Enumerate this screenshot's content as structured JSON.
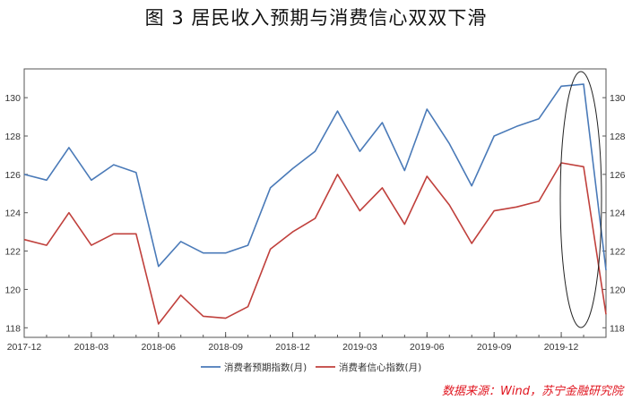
{
  "title": "图 3   居民收入预期与消费信心双双下滑",
  "source": "数据来源：Wind，苏宁金融研究院",
  "chart_data": {
    "type": "line",
    "x": [
      "2017-12",
      "2018-01",
      "2018-02",
      "2018-03",
      "2018-04",
      "2018-05",
      "2018-06",
      "2018-07",
      "2018-08",
      "2018-09",
      "2018-10",
      "2018-11",
      "2018-12",
      "2019-01",
      "2019-02",
      "2019-03",
      "2019-04",
      "2019-05",
      "2019-06",
      "2019-07",
      "2019-08",
      "2019-09",
      "2019-10",
      "2019-11",
      "2019-12",
      "2020-01",
      "2020-02"
    ],
    "x_tick_labels": [
      "2017-12",
      "2018-03",
      "2018-06",
      "2018-09",
      "2018-12",
      "2019-03",
      "2019-06",
      "2019-09",
      "2019-12"
    ],
    "y_ticks": [
      118,
      120,
      122,
      124,
      126,
      128,
      130
    ],
    "ylim": [
      117.5,
      131.5
    ],
    "grid": false,
    "legend_position": "bottom",
    "series": [
      {
        "name": "消费者预期指数(月)",
        "color": "#4a7ab8",
        "values": [
          126.0,
          125.7,
          127.4,
          125.7,
          126.5,
          126.1,
          121.2,
          122.5,
          121.9,
          121.9,
          122.3,
          125.3,
          126.3,
          127.2,
          129.3,
          127.2,
          128.7,
          126.2,
          129.4,
          127.6,
          125.4,
          128.0,
          128.5,
          128.9,
          130.6,
          130.7,
          121.0
        ]
      },
      {
        "name": "消费者信心指数(月)",
        "color": "#c0403c",
        "values": [
          122.6,
          122.3,
          124.0,
          122.3,
          122.9,
          122.9,
          118.2,
          119.7,
          118.6,
          118.5,
          119.1,
          122.1,
          123.0,
          123.7,
          126.0,
          124.1,
          125.3,
          123.4,
          125.9,
          124.4,
          122.4,
          124.1,
          124.3,
          124.6,
          126.6,
          126.4,
          118.7
        ]
      }
    ]
  }
}
